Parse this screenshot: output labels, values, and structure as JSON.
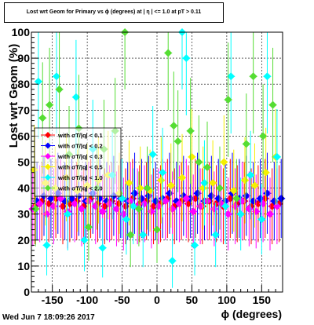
{
  "title": "Lost wrt Geom for Primary vs ϕ (degrees) at | η | <= 1.0 at pT > 0.11",
  "timestamp": "Wed Jun  7 18:09:26 2017",
  "chart_data": {
    "type": "scatter",
    "xlabel": "ϕ (degrees)",
    "ylabel": "Lost wrt Geom (%)",
    "xlim": [
      -180,
      180
    ],
    "ylim": [
      0,
      100
    ],
    "xticks": [
      -150,
      -100,
      -50,
      0,
      50,
      100,
      150
    ],
    "yticks": [
      0,
      10,
      20,
      30,
      40,
      50,
      60,
      70,
      80,
      90,
      100
    ],
    "grid": true,
    "legend_position": "left-center",
    "series": [
      {
        "name": "with σT/|q| < 0.1",
        "color": "#ff0000",
        "x": [
          -175,
          -165,
          -155,
          -145,
          -135,
          -125,
          -115,
          -105,
          -95,
          -85,
          -75,
          -65,
          -55,
          -45,
          -35,
          -25,
          -15,
          -5,
          5,
          15,
          25,
          35,
          45,
          55,
          65,
          75,
          85,
          95,
          105,
          115,
          125,
          135,
          145,
          155,
          165,
          175
        ],
        "y": [
          33,
          35,
          34,
          36,
          33,
          34,
          35,
          33,
          36,
          34,
          33,
          35,
          34,
          33,
          36,
          34,
          35,
          33,
          34,
          36,
          33,
          35,
          34,
          36,
          33,
          35,
          34,
          33,
          36,
          34,
          35,
          33,
          34,
          36,
          33,
          34
        ]
      },
      {
        "name": "with σT/|q| < 0.2",
        "color": "#0000ff",
        "x": [
          -172,
          -162,
          -152,
          -142,
          -132,
          -122,
          -112,
          -102,
          -92,
          -82,
          -72,
          -62,
          -52,
          -42,
          -32,
          -22,
          -12,
          -2,
          8,
          18,
          28,
          38,
          48,
          58,
          68,
          78,
          88,
          98,
          108,
          118,
          128,
          138,
          148,
          158,
          168,
          178
        ],
        "y": [
          35,
          37,
          36,
          38,
          35,
          36,
          37,
          35,
          38,
          36,
          35,
          37,
          36,
          35,
          38,
          36,
          37,
          35,
          36,
          38,
          35,
          37,
          36,
          38,
          35,
          37,
          36,
          35,
          38,
          36,
          37,
          35,
          36,
          38,
          35,
          36
        ]
      },
      {
        "name": "with σT/|q| < 0.3",
        "color": "#ff00ff",
        "x": [
          -178,
          -168,
          -158,
          -148,
          -138,
          -128,
          -118,
          -108,
          -98,
          -88,
          -78,
          -68,
          -58,
          -48,
          -38,
          -28,
          -18,
          -8,
          2,
          12,
          22,
          32,
          42,
          52,
          62,
          72,
          82,
          92,
          102,
          112,
          122,
          132,
          142,
          152,
          162,
          172
        ],
        "y": [
          32,
          34,
          30,
          33,
          36,
          31,
          34,
          32,
          35,
          33,
          31,
          34,
          32,
          30,
          35,
          33,
          34,
          31,
          33,
          35,
          32,
          34,
          36,
          31,
          33,
          35,
          32,
          34,
          30,
          33,
          35,
          32,
          31,
          34,
          30,
          33
        ]
      },
      {
        "name": "with σT/|q| < 0.5",
        "color": "#f5f000",
        "x": [
          -176,
          -160,
          -146,
          -130,
          -114,
          -100,
          -84,
          -70,
          -54,
          -40,
          -24,
          -10,
          6,
          20,
          36,
          50,
          66,
          80,
          96,
          110,
          126,
          140,
          156,
          170
        ],
        "y": [
          47,
          42,
          40,
          44,
          39,
          41,
          43,
          45,
          38,
          42,
          40,
          39,
          43,
          41,
          44,
          52,
          40,
          42,
          50,
          39,
          43,
          41,
          46,
          52
        ]
      },
      {
        "name": "with σT/|q| < 1.0",
        "color": "#00ffff",
        "x": [
          -170,
          -158,
          -144,
          -128,
          -116,
          -104,
          -92,
          -78,
          -64,
          -50,
          -44,
          -34,
          -20,
          -6,
          8,
          22,
          36,
          42,
          54,
          68,
          84,
          98,
          106,
          120,
          134,
          150,
          158,
          172
        ],
        "y": [
          81,
          18,
          83,
          30,
          75,
          20,
          55,
          17,
          45,
          36,
          28,
          33,
          22,
          53,
          46,
          12,
          100,
          90,
          18,
          42,
          22,
          33,
          83,
          30,
          45,
          28,
          83,
          52
        ]
      },
      {
        "name": "with σT/|q| < 2.0",
        "color": "#55dd33",
        "x": [
          -174,
          -164,
          -154,
          -140,
          -126,
          -112,
          -98,
          -86,
          -76,
          -60,
          -46,
          -38,
          -26,
          -14,
          0,
          16,
          24,
          30,
          48,
          60,
          72,
          90,
          102,
          114,
          128,
          138,
          152,
          166
        ],
        "y": [
          32,
          67,
          72,
          78,
          53,
          63,
          25,
          40,
          55,
          62,
          100,
          22,
          32,
          40,
          24,
          92,
          64,
          58,
          62,
          50,
          48,
          40,
          74,
          36,
          57,
          83,
          60,
          72
        ]
      }
    ]
  }
}
